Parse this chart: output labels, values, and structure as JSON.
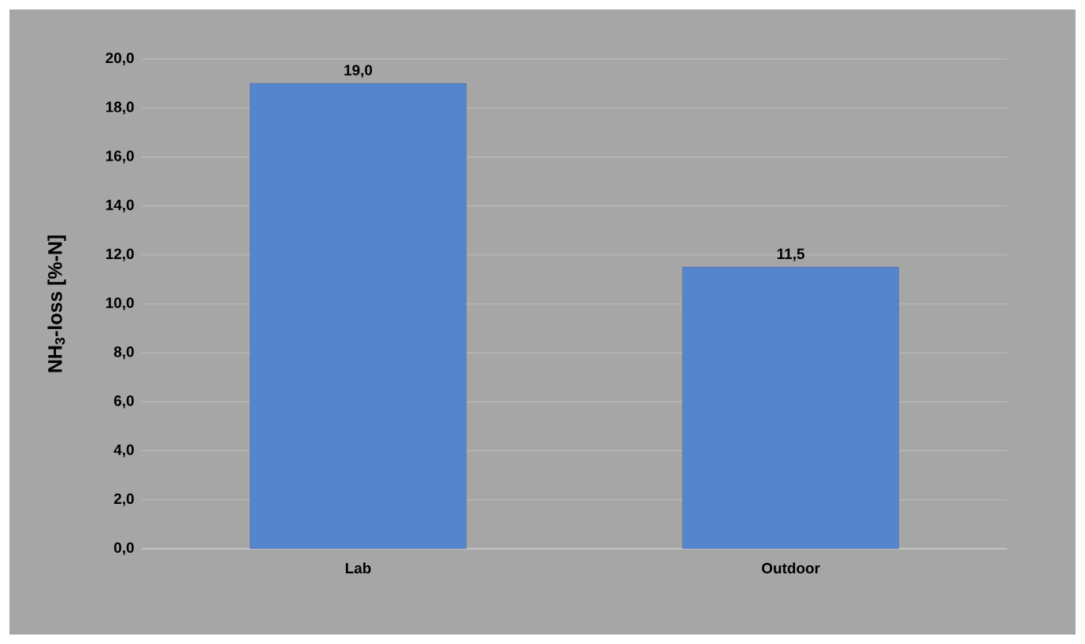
{
  "chart_data": {
    "type": "bar",
    "ylabel": "NH$_{3}$-loss [%-N]",
    "categories": [
      "Lab",
      "Outdoor"
    ],
    "values": [
      19.0,
      11.5
    ],
    "color": "#5585cc",
    "value_labels": [
      "19,0",
      "11,5"
    ],
    "ylim": [
      0,
      20
    ],
    "yticks": [
      {
        "value": 0,
        "label": "0,0"
      },
      {
        "value": 2,
        "label": "2,0"
      },
      {
        "value": 4,
        "label": "4,0"
      },
      {
        "value": 6,
        "label": "6,0"
      },
      {
        "value": 8,
        "label": "8,0"
      },
      {
        "value": 10,
        "label": "10,0"
      },
      {
        "value": 12,
        "label": "12,0"
      },
      {
        "value": 14,
        "label": "14,0"
      },
      {
        "value": 16,
        "label": "16,0"
      },
      {
        "value": 18,
        "label": "18,0"
      },
      {
        "value": 20,
        "label": "20,0"
      }
    ],
    "grid": "y"
  }
}
